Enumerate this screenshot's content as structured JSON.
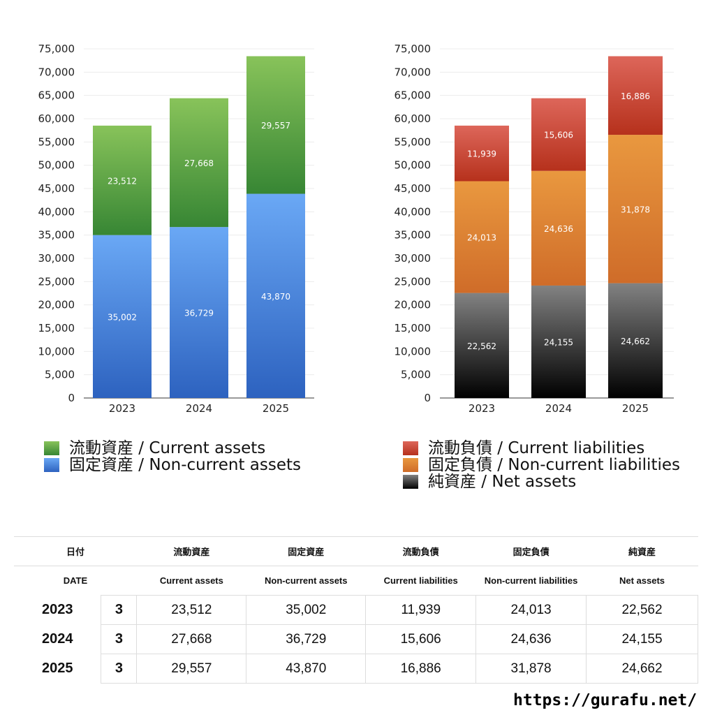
{
  "chart_data": [
    {
      "type": "bar",
      "stacked": true,
      "categories": [
        "2023",
        "2024",
        "2025"
      ],
      "ylim": [
        0,
        75000
      ],
      "yticks": [
        "0",
        "5,000",
        "10,000",
        "15,000",
        "20,000",
        "25,000",
        "30,000",
        "35,000",
        "40,000",
        "45,000",
        "50,000",
        "55,000",
        "60,000",
        "65,000",
        "70,000",
        "75,000"
      ],
      "grid": true,
      "legend_position": "bottom",
      "series": [
        {
          "name": "固定資産 / Non-current assets",
          "values": [
            35002,
            36729,
            43870
          ],
          "labels": [
            "35,002",
            "36,729",
            "43,870"
          ],
          "color_top": "#6aa8f5",
          "color_bottom": "#2d62bf"
        },
        {
          "name": "流動資産 / Current assets",
          "values": [
            23512,
            27668,
            29557
          ],
          "labels": [
            "23,512",
            "27,668",
            "29,557"
          ],
          "color_top": "#88c35a",
          "color_bottom": "#378634"
        }
      ]
    },
    {
      "type": "bar",
      "stacked": true,
      "categories": [
        "2023",
        "2024",
        "2025"
      ],
      "ylim": [
        0,
        75000
      ],
      "yticks": [
        "0",
        "5,000",
        "10,000",
        "15,000",
        "20,000",
        "25,000",
        "30,000",
        "35,000",
        "40,000",
        "45,000",
        "50,000",
        "55,000",
        "60,000",
        "65,000",
        "70,000",
        "75,000"
      ],
      "grid": true,
      "legend_position": "bottom",
      "series": [
        {
          "name": "純資産 / Net assets",
          "values": [
            22562,
            24155,
            24662
          ],
          "labels": [
            "22,562",
            "24,155",
            "24,662"
          ],
          "color_top": "#828282",
          "color_bottom": "#000000"
        },
        {
          "name": "固定負債 / Non-current liabilities",
          "values": [
            24013,
            24636,
            31878
          ],
          "labels": [
            "24,013",
            "24,636",
            "31,878"
          ],
          "color_top": "#e9983f",
          "color_bottom": "#cf6c29"
        },
        {
          "name": "流動負債 / Current liabilities",
          "values": [
            11939,
            15606,
            16886
          ],
          "labels": [
            "11,939",
            "15,606",
            "16,886"
          ],
          "color_top": "#dd665a",
          "color_bottom": "#b6311c"
        }
      ]
    }
  ],
  "legend_left": [
    {
      "label": "流動資産 / Current assets",
      "color": "#4e9e3e"
    },
    {
      "label": "固定資産 / Non-current assets",
      "color": "#4a88e0"
    }
  ],
  "legend_right": [
    {
      "label": "流動負債 / Current liabilities",
      "color": "#c8402e"
    },
    {
      "label": "固定負債 / Non-current liabilities",
      "color": "#e08534"
    },
    {
      "label": "純資産 / Net assets",
      "color": "#333333"
    }
  ],
  "table": {
    "header_ja": [
      "日付",
      "流動資産",
      "固定資産",
      "流動負債",
      "固定負債",
      "純資産"
    ],
    "header_en": [
      "DATE",
      "Current assets",
      "Non-current assets",
      "Current liabilities",
      "Non-current liabilities",
      "Net assets"
    ],
    "rows": [
      {
        "year": "2023",
        "month": "3",
        "values": [
          "23,512",
          "35,002",
          "11,939",
          "24,013",
          "22,562"
        ]
      },
      {
        "year": "2024",
        "month": "3",
        "values": [
          "27,668",
          "36,729",
          "15,606",
          "24,636",
          "24,155"
        ]
      },
      {
        "year": "2025",
        "month": "3",
        "values": [
          "29,557",
          "43,870",
          "16,886",
          "31,878",
          "24,662"
        ]
      }
    ]
  },
  "footer_url": "https://gurafu.net/"
}
